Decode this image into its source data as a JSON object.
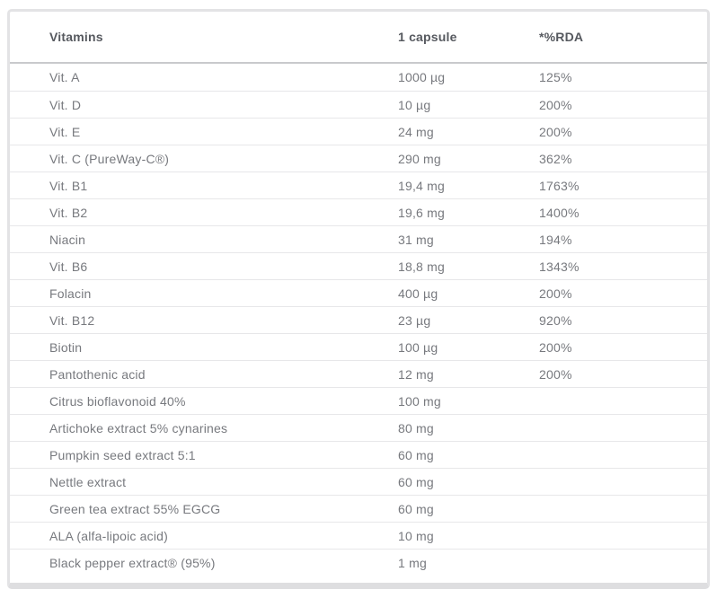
{
  "table": {
    "columns": [
      "Vitamins",
      "1 capsule",
      "*%RDA"
    ],
    "rows": [
      {
        "name": "Vit. A",
        "amount": "1000 µg",
        "rda": "125%"
      },
      {
        "name": "Vit. D",
        "amount": "10 µg",
        "rda": "200%"
      },
      {
        "name": "Vit. E",
        "amount": "24 mg",
        "rda": "200%"
      },
      {
        "name": "Vit. C (PureWay-C®)",
        "amount": "290 mg",
        "rda": "362%"
      },
      {
        "name": "Vit. B1",
        "amount": "19,4 mg",
        "rda": "1763%"
      },
      {
        "name": "Vit. B2",
        "amount": "19,6 mg",
        "rda": "1400%"
      },
      {
        "name": "Niacin",
        "amount": "31 mg",
        "rda": "194%"
      },
      {
        "name": "Vit. B6",
        "amount": "18,8 mg",
        "rda": "1343%"
      },
      {
        "name": "Folacin",
        "amount": "400 µg",
        "rda": "200%"
      },
      {
        "name": "Vit. B12",
        "amount": "23 µg",
        "rda": "920%"
      },
      {
        "name": "Biotin",
        "amount": "100 µg",
        "rda": "200%"
      },
      {
        "name": "Pantothenic acid",
        "amount": "12 mg",
        "rda": "200%"
      },
      {
        "name": "Citrus bioflavonoid 40%",
        "amount": "100 mg",
        "rda": ""
      },
      {
        "name": "Artichoke extract 5% cynarines",
        "amount": "80 mg",
        "rda": ""
      },
      {
        "name": "Pumpkin seed extract 5:1",
        "amount": "60 mg",
        "rda": ""
      },
      {
        "name": "Nettle extract",
        "amount": "60 mg",
        "rda": ""
      },
      {
        "name": "Green tea extract 55% EGCG",
        "amount": "60 mg",
        "rda": ""
      },
      {
        "name": "ALA (alfa-lipoic acid)",
        "amount": "10 mg",
        "rda": ""
      },
      {
        "name": "Black pepper extract® (95%)",
        "amount": "1 mg",
        "rda": ""
      }
    ],
    "colors": {
      "header_text": "#56595f",
      "body_text": "#77797e",
      "header_divider": "#c9cacc",
      "row_divider": "#e7e7e9",
      "card_border": "#e3e3e5"
    }
  }
}
